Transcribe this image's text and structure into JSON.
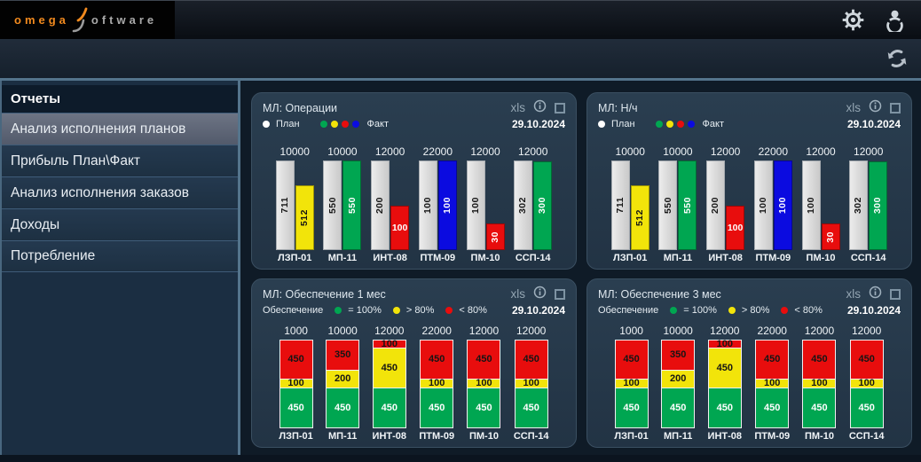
{
  "header": {
    "logo_part1": "omega",
    "logo_part2": "oftware",
    "icons": {
      "settings": "gear-icon",
      "account": "user-icon"
    }
  },
  "toolbar": {
    "icons": {
      "refresh": "refresh-icon"
    }
  },
  "sidebar": {
    "title": "Отчеты",
    "items": [
      {
        "label": "Анализ исполнения планов",
        "selected": true
      },
      {
        "label": "Прибыль План\\Факт",
        "selected": false
      },
      {
        "label": "Анализ исполнения заказов",
        "selected": false
      },
      {
        "label": "Доходы",
        "selected": false
      },
      {
        "label": "Потребление",
        "selected": false
      }
    ]
  },
  "panel_actions": {
    "xls_label": "xls",
    "icons": {
      "info": "info-icon",
      "select": "checkbox"
    }
  },
  "colors": {
    "green": "#00a651",
    "yellow": "#f2e40a",
    "red": "#e80d0d",
    "blue": "#0b0be0",
    "plan_gray": "#d9d9d9",
    "white": "#ffffff",
    "accent_orange": "#f28a1e",
    "divider_blue": "#54748c"
  },
  "chart_data": [
    {
      "type": "bar",
      "variant": "plan-fact",
      "title": "МЛ: Операции",
      "date": "29.10.2024",
      "legend": {
        "plan_label": "План",
        "fact_label": "Факт",
        "fact_colors": [
          "green",
          "yellow",
          "red",
          "blue"
        ]
      },
      "categories": [
        "ЛЗП-01",
        "МП-11",
        "ИНТ-08",
        "ПТМ-09",
        "ПМ-10",
        "ССП-14"
      ],
      "totals": [
        10000,
        10000,
        12000,
        22000,
        12000,
        12000
      ],
      "series": [
        {
          "name": "План",
          "values": [
            711,
            550,
            200,
            100,
            100,
            302
          ]
        },
        {
          "name": "Факт",
          "values": [
            512,
            550,
            100,
            100,
            30,
            300
          ]
        }
      ],
      "fact_colors": [
        "yellow",
        "green",
        "red",
        "blue",
        "red",
        "green"
      ],
      "fact_label_rotated": [
        true,
        true,
        false,
        true,
        true,
        true
      ]
    },
    {
      "type": "bar",
      "variant": "plan-fact",
      "title": "МЛ: Н/ч",
      "date": "29.10.2024",
      "legend": {
        "plan_label": "План",
        "fact_label": "Факт",
        "fact_colors": [
          "green",
          "yellow",
          "red",
          "blue"
        ]
      },
      "categories": [
        "ЛЗП-01",
        "МП-11",
        "ИНТ-08",
        "ПТМ-09",
        "ПМ-10",
        "ССП-14"
      ],
      "totals": [
        10000,
        10000,
        12000,
        22000,
        12000,
        12000
      ],
      "series": [
        {
          "name": "План",
          "values": [
            711,
            550,
            200,
            100,
            100,
            302
          ]
        },
        {
          "name": "Факт",
          "values": [
            512,
            550,
            100,
            100,
            30,
            300
          ]
        }
      ],
      "fact_colors": [
        "yellow",
        "green",
        "red",
        "blue",
        "red",
        "green"
      ],
      "fact_label_rotated": [
        true,
        true,
        false,
        true,
        true,
        true
      ]
    },
    {
      "type": "bar",
      "variant": "stacked",
      "title": "МЛ: Обеспечение 1 мес",
      "date": "29.10.2024",
      "legend": {
        "prefix": "Обеспечение",
        "items": [
          {
            "color": "green",
            "label": "= 100%"
          },
          {
            "color": "yellow",
            "label": "> 80%"
          },
          {
            "color": "red",
            "label": "< 80%"
          }
        ]
      },
      "categories": [
        "ЛЗП-01",
        "МП-11",
        "ИНТ-08",
        "ПТМ-09",
        "ПМ-10",
        "ССП-14"
      ],
      "totals": [
        1000,
        10000,
        12000,
        22000,
        12000,
        12000
      ],
      "stack_total": 1000,
      "series": [
        {
          "name": "red",
          "values": [
            450,
            350,
            100,
            450,
            450,
            450
          ]
        },
        {
          "name": "yellow",
          "values": [
            100,
            200,
            450,
            100,
            100,
            100
          ]
        },
        {
          "name": "green",
          "values": [
            450,
            450,
            450,
            450,
            450,
            450
          ]
        }
      ]
    },
    {
      "type": "bar",
      "variant": "stacked",
      "title": "МЛ: Обеспечение 3 мес",
      "date": "29.10.2024",
      "legend": {
        "prefix": "Обеспечение",
        "items": [
          {
            "color": "green",
            "label": "= 100%"
          },
          {
            "color": "yellow",
            "label": "> 80%"
          },
          {
            "color": "red",
            "label": "< 80%"
          }
        ]
      },
      "categories": [
        "ЛЗП-01",
        "МП-11",
        "ИНТ-08",
        "ПТМ-09",
        "ПМ-10",
        "ССП-14"
      ],
      "totals": [
        1000,
        10000,
        12000,
        22000,
        12000,
        12000
      ],
      "stack_total": 1000,
      "series": [
        {
          "name": "red",
          "values": [
            450,
            350,
            100,
            450,
            450,
            450
          ]
        },
        {
          "name": "yellow",
          "values": [
            100,
            200,
            450,
            100,
            100,
            100
          ]
        },
        {
          "name": "green",
          "values": [
            450,
            450,
            450,
            450,
            450,
            450
          ]
        }
      ]
    }
  ]
}
